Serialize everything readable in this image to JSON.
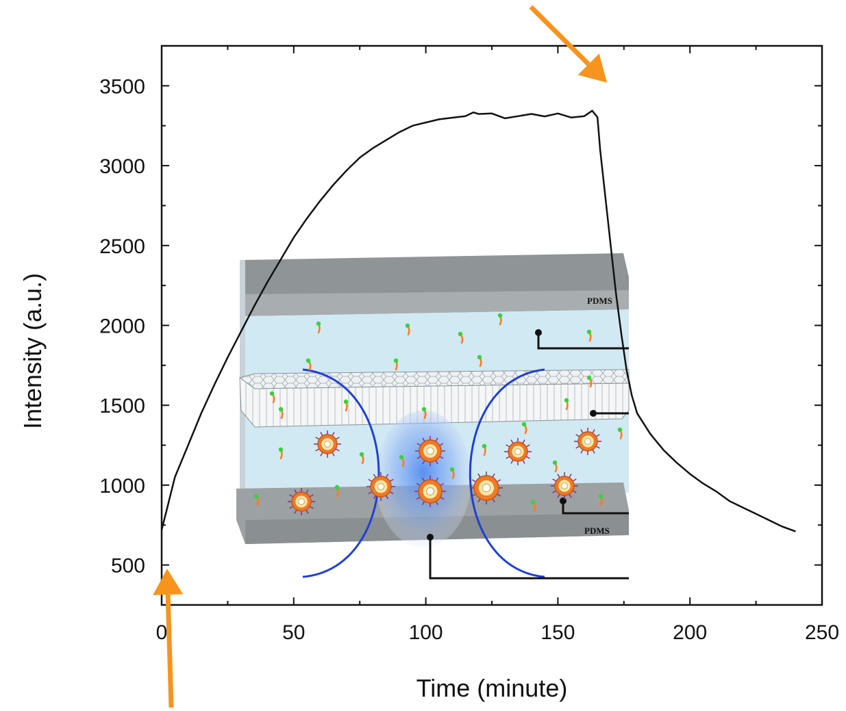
{
  "chart_data": {
    "type": "line",
    "title": "",
    "xlabel": "Time (minute)",
    "ylabel": "Intensity (a.u.)",
    "xlim": [
      0,
      250
    ],
    "ylim": [
      250,
      3750
    ],
    "xticks": [
      0,
      50,
      100,
      150,
      200,
      250
    ],
    "yticks": [
      500,
      1000,
      1500,
      2000,
      2500,
      3000,
      3500
    ],
    "xtick_labels": [
      "0",
      "50",
      "100",
      "150",
      "200",
      "250"
    ],
    "ytick_labels": [
      "500",
      "1000",
      "1500",
      "2000",
      "2500",
      "3000",
      "3500"
    ],
    "grid": false,
    "legend": "none",
    "series": [
      {
        "color": "#111111",
        "x": [
          0,
          2,
          5,
          10,
          15,
          20,
          25,
          30,
          35,
          40,
          45,
          50,
          55,
          60,
          65,
          70,
          75,
          80,
          85,
          90,
          95,
          100,
          105,
          110,
          115,
          118,
          120,
          125,
          130,
          135,
          140,
          145,
          150,
          155,
          160,
          163,
          165,
          166,
          168,
          170,
          172,
          174,
          176,
          178,
          180,
          185,
          190,
          195,
          200,
          205,
          210,
          215,
          220,
          225,
          230,
          235,
          240
        ],
        "y": [
          720,
          850,
          1050,
          1250,
          1450,
          1630,
          1800,
          1960,
          2120,
          2270,
          2410,
          2550,
          2670,
          2780,
          2880,
          2970,
          3050,
          3110,
          3160,
          3210,
          3250,
          3270,
          3290,
          3300,
          3310,
          3320,
          3330,
          3320,
          3310,
          3310,
          3310,
          3315,
          3320,
          3315,
          3310,
          3330,
          3310,
          3100,
          2800,
          2500,
          2200,
          1950,
          1720,
          1560,
          1450,
          1320,
          1220,
          1140,
          1070,
          1010,
          960,
          900,
          860,
          820,
          780,
          740,
          710
        ]
      }
    ],
    "annotations": [
      {
        "type": "arrow",
        "color": "#f7941d",
        "points_to": [
          0,
          400
        ]
      },
      {
        "type": "arrow",
        "color": "#f7941d",
        "points_to": [
          166,
          3520
        ]
      }
    ],
    "inset": {
      "type": "schematic",
      "labels": [
        "PDMS",
        "PDMS"
      ]
    }
  },
  "colors": {
    "arrow": "#f7941d",
    "line": "#111111",
    "fluid": "#cfe8f1",
    "pdms": "#8f9496",
    "virus": "#f07a25",
    "curve": "#1f3fd6",
    "tail": "#ff7b1a",
    "head": "#37d23a"
  }
}
